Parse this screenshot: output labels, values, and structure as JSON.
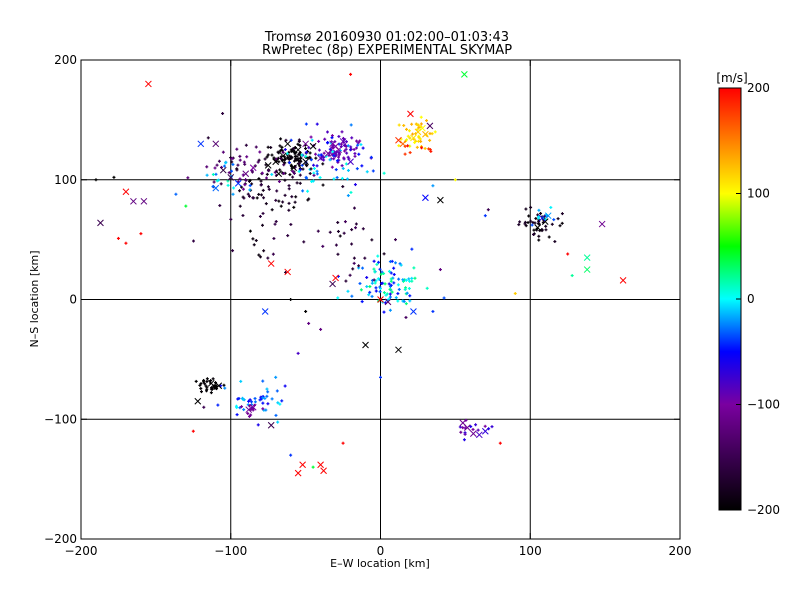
{
  "chart_data": {
    "type": "scatter",
    "title": "Tromsø 20160930 01:02:00–01:03:43",
    "subtitle": "RwPretec (8p) EXPERIMENTAL SKYMAP",
    "xlabel": "E–W location [km]",
    "ylabel": "N–S location [km]",
    "xlim": [
      -200,
      200
    ],
    "ylim": [
      -200,
      200
    ],
    "xticks": [
      -200,
      -100,
      0,
      100,
      200
    ],
    "yticks": [
      -200,
      -100,
      0,
      100,
      200
    ],
    "xtick_labels": [
      "−200",
      "−100",
      "0",
      "100",
      "200"
    ],
    "ytick_labels": [
      "−200",
      "−100",
      "0",
      "100",
      "200"
    ],
    "grid": true,
    "colorbar": {
      "label": "[m/s]",
      "range": [
        -200,
        200
      ],
      "ticks": [
        200,
        100,
        0,
        -100,
        -200
      ],
      "tick_labels": [
        "200",
        "100",
        "0",
        "−100",
        "−200"
      ],
      "colors": [
        "#000000",
        "#3a0050",
        "#7a00a0",
        "#0000ff",
        "#00ffff",
        "#00ff00",
        "#ffff00",
        "#ff8000",
        "#ff0000"
      ]
    },
    "clusters": [
      {
        "cx": -60,
        "cy": 120,
        "sx": 8,
        "sy": 6,
        "n": 90,
        "vmin": -200,
        "vmax": -190
      },
      {
        "cx": -30,
        "cy": 125,
        "sx": 9,
        "sy": 8,
        "n": 70,
        "vmin": -105,
        "vmax": -80
      },
      {
        "cx": -35,
        "cy": 115,
        "sx": 15,
        "sy": 12,
        "n": 70,
        "vmin": -70,
        "vmax": 10
      },
      {
        "cx": -75,
        "cy": 95,
        "sx": 18,
        "sy": 18,
        "n": 90,
        "vmin": -200,
        "vmax": -160
      },
      {
        "cx": -85,
        "cy": 110,
        "sx": 20,
        "sy": 10,
        "n": 45,
        "vmin": -150,
        "vmax": -110
      },
      {
        "cx": -100,
        "cy": 100,
        "sx": 10,
        "sy": 8,
        "n": 20,
        "vmin": -40,
        "vmax": 20
      },
      {
        "cx": 25,
        "cy": 140,
        "sx": 6,
        "sy": 6,
        "n": 40,
        "vmin": 95,
        "vmax": 135
      },
      {
        "cx": 22,
        "cy": 125,
        "sx": 5,
        "sy": 4,
        "n": 8,
        "vmin": 170,
        "vmax": 200
      },
      {
        "cx": 5,
        "cy": 12,
        "sx": 12,
        "sy": 12,
        "n": 100,
        "vmin": -60,
        "vmax": 30
      },
      {
        "cx": 107,
        "cy": 62,
        "sx": 7,
        "sy": 6,
        "n": 45,
        "vmin": -200,
        "vmax": -170
      },
      {
        "cx": 112,
        "cy": 68,
        "sx": 4,
        "sy": 4,
        "n": 10,
        "vmin": -40,
        "vmax": 10
      },
      {
        "cx": -112,
        "cy": -70,
        "sx": 4,
        "sy": 3,
        "n": 30,
        "vmin": -200,
        "vmax": -195
      },
      {
        "cx": -85,
        "cy": -85,
        "sx": 12,
        "sy": 8,
        "n": 45,
        "vmin": -60,
        "vmax": 0
      },
      {
        "cx": -85,
        "cy": -92,
        "sx": 3,
        "sy": 3,
        "n": 10,
        "vmin": -110,
        "vmax": -100
      },
      {
        "cx": -20,
        "cy": 50,
        "sx": 14,
        "sy": 14,
        "n": 25,
        "vmin": -190,
        "vmax": -140
      },
      {
        "cx": -80,
        "cy": 50,
        "sx": 14,
        "sy": 14,
        "n": 15,
        "vmin": -200,
        "vmax": -150
      },
      {
        "cx": 60,
        "cy": -108,
        "sx": 5,
        "sy": 4,
        "n": 15,
        "vmin": -110,
        "vmax": -60
      }
    ],
    "markers": [
      {
        "x": -65,
        "y": 120,
        "v": -200
      },
      {
        "x": -70,
        "y": 115,
        "v": -200
      },
      {
        "x": -55,
        "y": 125,
        "v": -200
      },
      {
        "x": -62,
        "y": 130,
        "v": -200
      },
      {
        "x": -58,
        "y": 110,
        "v": -200
      },
      {
        "x": -75,
        "y": 112,
        "v": -200
      },
      {
        "x": -68,
        "y": 105,
        "v": -200
      },
      {
        "x": -50,
        "y": 115,
        "v": -200
      },
      {
        "x": -45,
        "y": 128,
        "v": -200
      },
      {
        "x": -30,
        "y": 128,
        "v": -100
      },
      {
        "x": -28,
        "y": 125,
        "v": -100
      },
      {
        "x": -32,
        "y": 130,
        "v": -100
      },
      {
        "x": -25,
        "y": 132,
        "v": -90
      },
      {
        "x": -35,
        "y": 122,
        "v": -105
      },
      {
        "x": -40,
        "y": 118,
        "v": -90
      },
      {
        "x": -20,
        "y": 115,
        "v": -80
      },
      {
        "x": -50,
        "y": 130,
        "v": -110
      },
      {
        "x": -100,
        "y": 102,
        "v": -150
      },
      {
        "x": -110,
        "y": 93,
        "v": -30
      },
      {
        "x": -95,
        "y": 97,
        "v": -40
      },
      {
        "x": -105,
        "y": 108,
        "v": -160
      },
      {
        "x": -85,
        "y": 110,
        "v": -100
      },
      {
        "x": -90,
        "y": 105,
        "v": -120
      },
      {
        "x": -110,
        "y": 130,
        "v": -130
      },
      {
        "x": -120,
        "y": 130,
        "v": -40
      },
      {
        "x": 25,
        "y": 140,
        "v": 120
      },
      {
        "x": 22,
        "y": 135,
        "v": 110
      },
      {
        "x": 28,
        "y": 143,
        "v": 100
      },
      {
        "x": 30,
        "y": 138,
        "v": 130
      },
      {
        "x": 20,
        "y": 155,
        "v": 200
      },
      {
        "x": 33,
        "y": 145,
        "v": -140
      },
      {
        "x": 56,
        "y": 188,
        "v": 40
      },
      {
        "x": 40,
        "y": 83,
        "v": -200
      },
      {
        "x": 30,
        "y": 85,
        "v": -50
      },
      {
        "x": 12,
        "y": 133,
        "v": 180
      },
      {
        "x": 15,
        "y": 130,
        "v": 160
      },
      {
        "x": -155,
        "y": 180,
        "v": 200
      },
      {
        "x": -170,
        "y": 90,
        "v": 200
      },
      {
        "x": -165,
        "y": 82,
        "v": -120
      },
      {
        "x": -158,
        "y": 82,
        "v": -120
      },
      {
        "x": -187,
        "y": 64,
        "v": -150
      },
      {
        "x": -73,
        "y": 30,
        "v": 200
      },
      {
        "x": -62,
        "y": 23,
        "v": 200
      },
      {
        "x": -30,
        "y": 18,
        "v": 200
      },
      {
        "x": -32,
        "y": 13,
        "v": -150
      },
      {
        "x": 0,
        "y": 0,
        "v": 200
      },
      {
        "x": 5,
        "y": -2,
        "v": -130
      },
      {
        "x": 12,
        "y": -42,
        "v": -200
      },
      {
        "x": -10,
        "y": -38,
        "v": -200
      },
      {
        "x": 22,
        "y": -10,
        "v": -40
      },
      {
        "x": -77,
        "y": -10,
        "v": -40
      },
      {
        "x": -73,
        "y": -105,
        "v": -150
      },
      {
        "x": -122,
        "y": -85,
        "v": -200
      },
      {
        "x": -113,
        "y": -70,
        "v": -200
      },
      {
        "x": -108,
        "y": -72,
        "v": -200
      },
      {
        "x": -88,
        "y": -92,
        "v": -110
      },
      {
        "x": -85,
        "y": -90,
        "v": -100
      },
      {
        "x": 55,
        "y": -103,
        "v": -110
      },
      {
        "x": 58,
        "y": -107,
        "v": -110
      },
      {
        "x": 62,
        "y": -112,
        "v": -110
      },
      {
        "x": 66,
        "y": -113,
        "v": -80
      },
      {
        "x": 70,
        "y": -110,
        "v": -70
      },
      {
        "x": -52,
        "y": -138,
        "v": 200
      },
      {
        "x": -40,
        "y": -138,
        "v": 200
      },
      {
        "x": -55,
        "y": -145,
        "v": 200
      },
      {
        "x": -38,
        "y": -143,
        "v": 200
      },
      {
        "x": 105,
        "y": 60,
        "v": -200
      },
      {
        "x": 110,
        "y": 65,
        "v": -200
      },
      {
        "x": 108,
        "y": 68,
        "v": -60
      },
      {
        "x": 112,
        "y": 70,
        "v": -20
      },
      {
        "x": 138,
        "y": 35,
        "v": 20
      },
      {
        "x": 138,
        "y": 25,
        "v": 30
      },
      {
        "x": 162,
        "y": 16,
        "v": 200
      },
      {
        "x": 148,
        "y": 63,
        "v": -110
      }
    ],
    "singles": [
      {
        "x": -190,
        "y": 100,
        "v": -200
      },
      {
        "x": -178,
        "y": 102,
        "v": -200
      },
      {
        "x": -160,
        "y": 55,
        "v": 200
      },
      {
        "x": -175,
        "y": 51,
        "v": 200
      },
      {
        "x": -130,
        "y": 78,
        "v": 40
      },
      {
        "x": -170,
        "y": 47,
        "v": 200
      },
      {
        "x": -115,
        "y": 135,
        "v": -170
      },
      {
        "x": -20,
        "y": 188,
        "v": 200
      },
      {
        "x": 50,
        "y": 100,
        "v": 100
      },
      {
        "x": 90,
        "y": 5,
        "v": 120
      },
      {
        "x": 125,
        "y": 38,
        "v": 200
      },
      {
        "x": 128,
        "y": 20,
        "v": 20
      },
      {
        "x": 80,
        "y": -120,
        "v": 200
      },
      {
        "x": -25,
        "y": -120,
        "v": 200
      },
      {
        "x": -60,
        "y": -130,
        "v": -40
      },
      {
        "x": -45,
        "y": -140,
        "v": 40
      },
      {
        "x": -55,
        "y": -45,
        "v": -80
      },
      {
        "x": -70,
        "y": -65,
        "v": -20
      },
      {
        "x": -60,
        "y": 0,
        "v": -200
      },
      {
        "x": -50,
        "y": -10,
        "v": -200
      },
      {
        "x": -48,
        "y": -20,
        "v": -120
      },
      {
        "x": -40,
        "y": -25,
        "v": -120
      },
      {
        "x": 35,
        "y": -10,
        "v": -40
      },
      {
        "x": 10,
        "y": 50,
        "v": -150
      },
      {
        "x": 0,
        "y": -65,
        "v": -40
      },
      {
        "x": 40,
        "y": 25,
        "v": -120
      },
      {
        "x": 17,
        "y": -15,
        "v": -140
      },
      {
        "x": 35,
        "y": 95,
        "v": -20
      },
      {
        "x": 70,
        "y": 70,
        "v": -40
      },
      {
        "x": 72,
        "y": 75,
        "v": -150
      },
      {
        "x": -125,
        "y": -110,
        "v": 200
      },
      {
        "x": -118,
        "y": -90,
        "v": -150
      }
    ]
  }
}
